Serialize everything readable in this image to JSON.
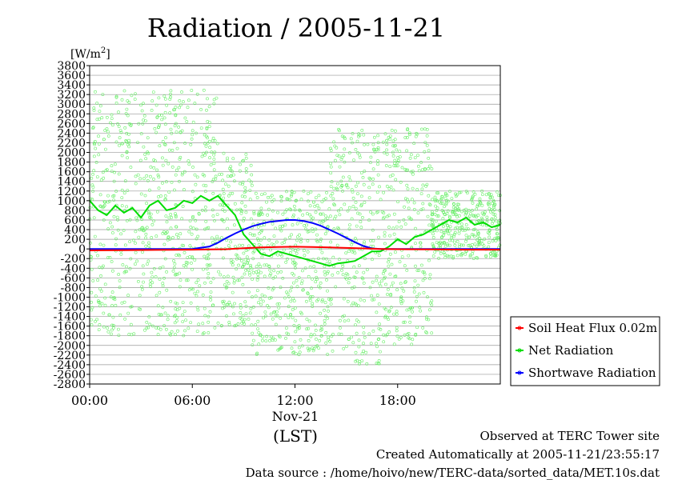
{
  "chart_data": {
    "type": "line",
    "title": "Radiation / 2005-11-21",
    "ylabel": "[W/m²]",
    "ylabel_base": "[W/m",
    "ylabel_sup": "2",
    "ylabel_close": "]",
    "xlabel": "(LST)",
    "date_label": "Nov-21",
    "ylim": [
      -2800,
      3800
    ],
    "xlim": [
      0,
      24
    ],
    "y_ticks": [
      -2800,
      -2600,
      -2400,
      -2200,
      -2000,
      -1800,
      -1600,
      -1400,
      -1200,
      -1000,
      -800,
      -600,
      -400,
      -200,
      0,
      200,
      400,
      600,
      800,
      1000,
      1200,
      1400,
      1600,
      1800,
      2000,
      2200,
      2400,
      2600,
      2800,
      3000,
      3200,
      3400,
      3600,
      3800
    ],
    "x_ticks": [
      {
        "label": "00:00",
        "hour": 0
      },
      {
        "label": "06:00",
        "hour": 6
      },
      {
        "label": "12:00",
        "hour": 12
      },
      {
        "label": "18:00",
        "hour": 18
      }
    ],
    "grid": true,
    "legend_position": "bottom-right",
    "series": [
      {
        "name": "Soil Heat Flux 0.02m",
        "color": "#ff0000",
        "x": [
          0,
          2,
          4,
          6,
          8,
          9,
          10,
          11,
          12,
          13,
          14,
          15,
          16,
          17,
          18,
          20,
          22,
          24
        ],
        "y": [
          -30,
          -25,
          -20,
          -15,
          -5,
          15,
          30,
          40,
          45,
          40,
          30,
          20,
          10,
          0,
          -5,
          -10,
          -15,
          -15
        ]
      },
      {
        "name": "Net Radiation",
        "color": "#00dd00",
        "x": [
          0,
          0.5,
          1,
          1.5,
          2,
          2.5,
          3,
          3.5,
          4,
          4.5,
          5,
          5.5,
          6,
          6.5,
          7,
          7.5,
          8,
          8.5,
          9,
          9.5,
          10,
          10.5,
          11,
          11.5,
          12,
          12.5,
          13,
          13.5,
          14,
          14.5,
          15,
          15.5,
          16,
          16.5,
          17,
          17.5,
          18,
          18.5,
          19,
          19.5,
          20,
          20.5,
          21,
          21.5,
          22,
          22.5,
          23,
          23.5,
          24
        ],
        "y": [
          1000,
          800,
          700,
          900,
          750,
          850,
          650,
          900,
          1000,
          800,
          850,
          1000,
          950,
          1100,
          1000,
          1100,
          900,
          700,
          300,
          100,
          -100,
          -150,
          -50,
          -100,
          -150,
          -200,
          -250,
          -300,
          -350,
          -300,
          -280,
          -250,
          -150,
          -50,
          -50,
          50,
          200,
          100,
          250,
          300,
          400,
          500,
          600,
          550,
          650,
          500,
          550,
          450,
          500
        ]
      },
      {
        "name": "Shortwave Radiation",
        "color": "#0000ff",
        "x": [
          0,
          2,
          4,
          6,
          7,
          7.5,
          8,
          8.5,
          9,
          9.5,
          10,
          10.5,
          11,
          11.5,
          12,
          12.5,
          13,
          13.5,
          14,
          14.5,
          15,
          15.5,
          16,
          16.5,
          17,
          18,
          20,
          22,
          24
        ],
        "y": [
          0,
          0,
          0,
          0,
          50,
          130,
          230,
          320,
          400,
          470,
          520,
          560,
          580,
          600,
          600,
          580,
          540,
          480,
          400,
          320,
          230,
          140,
          60,
          10,
          0,
          0,
          0,
          0,
          0
        ]
      }
    ],
    "scatter": {
      "color": "#66ee66",
      "ranges": [
        {
          "x0": 0,
          "x1": 7.5,
          "ymin": -1800,
          "ymax": 3300
        },
        {
          "x0": 7.5,
          "x1": 9.5,
          "ymin": -1600,
          "ymax": 2000
        },
        {
          "x0": 9.5,
          "x1": 14,
          "ymin": -2200,
          "ymax": 1200
        },
        {
          "x0": 14,
          "x1": 17,
          "ymin": -2400,
          "ymax": 2500
        },
        {
          "x0": 17,
          "x1": 20,
          "ymin": -2000,
          "ymax": 2500
        },
        {
          "x0": 20,
          "x1": 24,
          "ymin": -200,
          "ymax": 1200
        }
      ]
    }
  },
  "footer": {
    "site": "Observed at TERC Tower site",
    "created": "Created Automatically at 2005-11-21/23:55:17",
    "source": "Data source : /home/hoivo/new/TERC-data/sorted_data/MET.10s.dat"
  }
}
